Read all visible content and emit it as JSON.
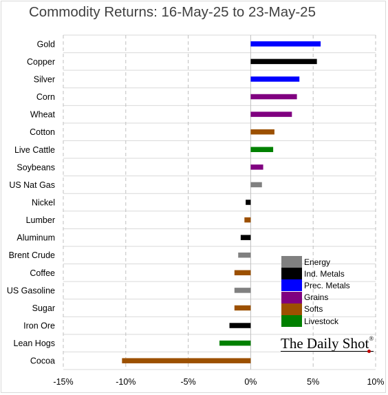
{
  "chart_data": {
    "type": "bar",
    "orientation": "horizontal",
    "title": "Commodity Returns: 16-May-25 to 23-May-25",
    "xlim": [
      -15,
      10
    ],
    "x_ticks": [
      -15,
      -10,
      -5,
      0,
      5,
      10
    ],
    "x_tick_labels": [
      "-15%",
      "-10%",
      "-5%",
      "0%",
      "5%",
      "10%"
    ],
    "grid": "vertical dashed gridlines and horizontal category separators",
    "legend_position": "lower-right",
    "groups": [
      {
        "name": "Energy",
        "color": "#808080"
      },
      {
        "name": "Ind. Metals",
        "color": "#000000"
      },
      {
        "name": "Prec. Metals",
        "color": "#0000ff"
      },
      {
        "name": "Grains",
        "color": "#800080"
      },
      {
        "name": "Softs",
        "color": "#9c5000"
      },
      {
        "name": "Livestock",
        "color": "#008000"
      }
    ],
    "categories": [
      "Gold",
      "Copper",
      "Silver",
      "Corn",
      "Wheat",
      "Cotton",
      "Live Cattle",
      "Soybeans",
      "US Nat Gas",
      "Nickel",
      "Lumber",
      "Aluminum",
      "Brent Crude",
      "Coffee",
      "US Gasoline",
      "Sugar",
      "Iron Ore",
      "Lean Hogs",
      "Cocoa"
    ],
    "values": [
      5.6,
      5.3,
      3.9,
      3.7,
      3.3,
      1.9,
      1.8,
      1.0,
      0.9,
      -0.4,
      -0.5,
      -0.8,
      -1.0,
      -1.3,
      -1.3,
      -1.3,
      -1.7,
      -2.5,
      -10.3
    ],
    "category_groups": [
      "Prec. Metals",
      "Ind. Metals",
      "Prec. Metals",
      "Grains",
      "Grains",
      "Softs",
      "Livestock",
      "Grains",
      "Energy",
      "Ind. Metals",
      "Softs",
      "Ind. Metals",
      "Energy",
      "Softs",
      "Energy",
      "Softs",
      "Ind. Metals",
      "Livestock",
      "Softs"
    ]
  },
  "brand": {
    "name": "The Daily Shot",
    "mark": "®"
  }
}
